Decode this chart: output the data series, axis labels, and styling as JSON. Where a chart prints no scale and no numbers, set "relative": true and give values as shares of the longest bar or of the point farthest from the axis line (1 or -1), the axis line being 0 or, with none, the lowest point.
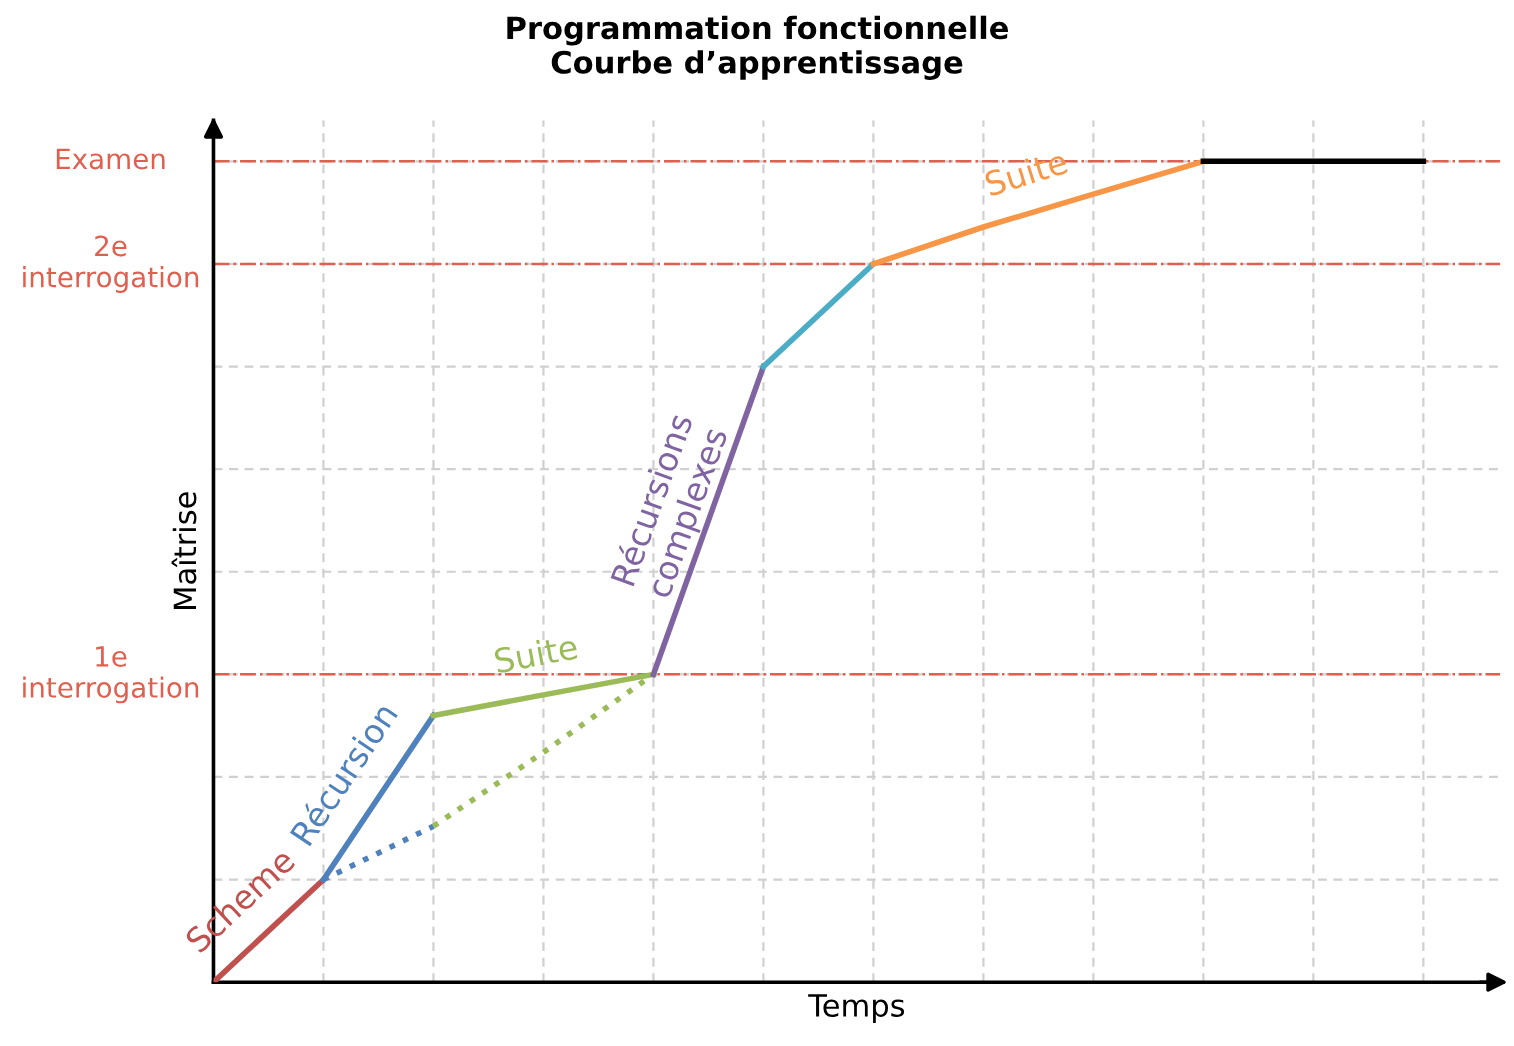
{
  "chart_data": {
    "type": "line",
    "title": "Programmation fonctionnelle\nCourbe d’apprentissage",
    "xlabel": "Temps",
    "ylabel": "Maîtrise",
    "relative": true,
    "grid": true,
    "tick_labels": false,
    "legend": false,
    "categories": [
      null,
      null,
      null,
      null,
      null,
      null,
      null,
      null,
      null,
      null,
      null,
      null
    ],
    "series": [
      {
        "name": "Scheme",
        "color": "#c0504d",
        "values": [
          0,
          0.125,
          null,
          null,
          null,
          null,
          null,
          null,
          null,
          null,
          null,
          null
        ]
      },
      {
        "name": "Récursion",
        "color": "#4f81bd",
        "values": [
          null,
          0.125,
          0.325,
          null,
          null,
          null,
          null,
          null,
          null,
          null,
          null,
          null
        ]
      },
      {
        "name": "Suite",
        "color": "#9bbb59",
        "values": [
          null,
          null,
          0.325,
          0.35,
          0.375,
          null,
          null,
          null,
          null,
          null,
          null,
          null
        ]
      },
      {
        "color": "#4f81bd",
        "line_style": "dotted",
        "values": [
          null,
          0.125,
          0.19,
          null,
          null,
          null,
          null,
          null,
          null,
          null,
          null,
          null
        ]
      },
      {
        "color": "#9bbb59",
        "line_style": "dotted",
        "values": [
          null,
          null,
          0.19,
          0.28,
          0.375,
          null,
          null,
          null,
          null,
          null,
          null,
          null
        ]
      },
      {
        "name": "Récursions\ncomplexes",
        "color": "#8064a2",
        "values": [
          null,
          null,
          null,
          null,
          0.375,
          0.75,
          null,
          null,
          null,
          null,
          null,
          null
        ]
      },
      {
        "color": "#4bacc6",
        "values": [
          null,
          null,
          null,
          null,
          null,
          0.75,
          0.875,
          null,
          null,
          null,
          null,
          null
        ]
      },
      {
        "name": "Suite",
        "color": "#f79646",
        "values": [
          null,
          null,
          null,
          null,
          null,
          null,
          0.875,
          0.92,
          0.96,
          1,
          null,
          null
        ]
      },
      {
        "color": "#000000",
        "values": [
          null,
          null,
          null,
          null,
          null,
          null,
          null,
          null,
          null,
          1,
          1,
          1
        ]
      }
    ],
    "ref_lines": [
      {
        "axis": "y",
        "value": 0.375,
        "label": "1e\ninterrogation",
        "color": "#e06050",
        "line_style": "dashdot"
      },
      {
        "axis": "y",
        "value": 0.875,
        "label": "2e\ninterrogation",
        "color": "#e06050",
        "line_style": "dashdot"
      },
      {
        "axis": "y",
        "value": 1,
        "label": "Examen",
        "color": "#e06050",
        "line_style": "dashdot"
      }
    ]
  }
}
